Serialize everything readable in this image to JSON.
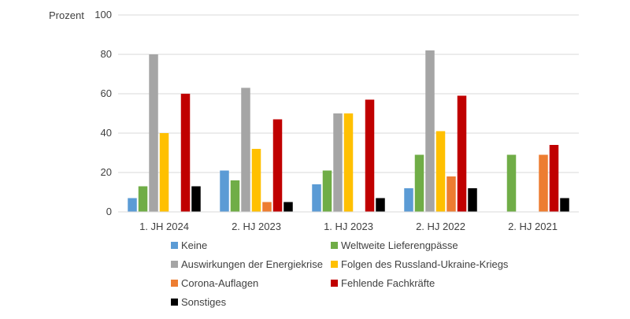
{
  "chart_data": {
    "type": "bar",
    "ylabel": "Prozent",
    "ylim": [
      0,
      100
    ],
    "yticks": [
      0,
      20,
      40,
      60,
      80,
      100
    ],
    "grid": true,
    "legend_position": "bottom",
    "categories": [
      "1. JH 2024",
      "2. HJ 2023",
      "1. HJ 2023",
      "2. HJ 2022",
      "2. HJ 2021"
    ],
    "series": [
      {
        "name": "Keine",
        "color": "#5B9BD5",
        "values": [
          7,
          21,
          14,
          12,
          null
        ]
      },
      {
        "name": "Weltweite Lieferengpässe",
        "color": "#70AD47",
        "values": [
          13,
          16,
          21,
          29,
          29
        ]
      },
      {
        "name": "Auswirkungen der Energiekrise",
        "color": "#A5A5A5",
        "values": [
          80,
          63,
          50,
          82,
          null
        ]
      },
      {
        "name": "Folgen des Russland-Ukraine-Kriegs",
        "color": "#FFC000",
        "values": [
          40,
          32,
          50,
          41,
          null
        ]
      },
      {
        "name": "Corona-Auflagen",
        "color": "#ED7D31",
        "values": [
          null,
          5,
          null,
          18,
          29
        ]
      },
      {
        "name": "Fehlende Fachkräfte",
        "color": "#C00000",
        "values": [
          60,
          47,
          57,
          59,
          34
        ]
      },
      {
        "name": "Sonstiges",
        "color": "#000000",
        "values": [
          13,
          5,
          7,
          12,
          7
        ]
      }
    ]
  }
}
